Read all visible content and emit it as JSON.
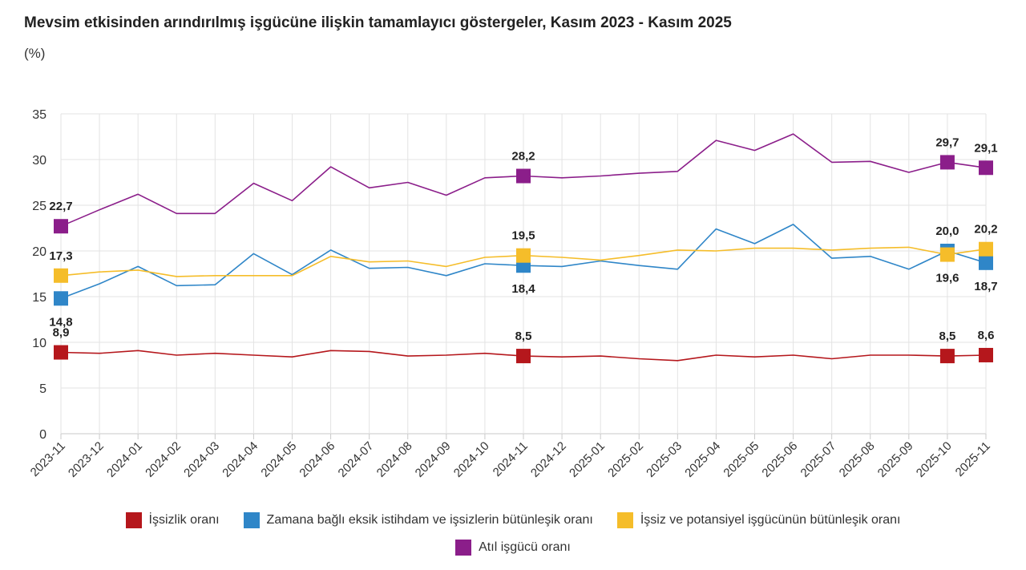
{
  "chart_data": {
    "type": "line",
    "title": "Mevsim etkisinden arındırılmış işgücüne ilişkin tamamlayıcı göstergeler, Kasım 2023 - Kasım 2025",
    "unit_label": "(%)",
    "ylim": [
      0,
      35
    ],
    "yticks": [
      0,
      5,
      10,
      15,
      20,
      25,
      30,
      35
    ],
    "grid": true,
    "legend_position": "bottom",
    "categories": [
      "2023-11",
      "2023-12",
      "2024-01",
      "2024-02",
      "2024-03",
      "2024-04",
      "2024-05",
      "2024-06",
      "2024-07",
      "2024-08",
      "2024-09",
      "2024-10",
      "2024-11",
      "2024-12",
      "2025-01",
      "2025-02",
      "2025-03",
      "2025-04",
      "2025-05",
      "2025-06",
      "2025-07",
      "2025-08",
      "2025-09",
      "2025-10",
      "2025-11"
    ],
    "series": [
      {
        "name": "İşsizlik oranı",
        "color": "#b5171c",
        "values": [
          8.9,
          8.8,
          9.1,
          8.6,
          8.8,
          8.6,
          8.4,
          9.1,
          9.0,
          8.5,
          8.6,
          8.8,
          8.5,
          8.4,
          8.5,
          8.2,
          8.0,
          8.6,
          8.4,
          8.6,
          8.2,
          8.6,
          8.6,
          8.5,
          8.6
        ],
        "labeled": [
          {
            "index": 0,
            "text": "8,9",
            "pos": "above"
          },
          {
            "index": 12,
            "text": "8,5",
            "pos": "above"
          },
          {
            "index": 23,
            "text": "8,5",
            "pos": "above"
          },
          {
            "index": 24,
            "text": "8,6",
            "pos": "above"
          }
        ]
      },
      {
        "name": "Zamana bağlı eksik istihdam ve işsizlerin bütünleşik oranı",
        "color": "#2f86c8",
        "values": [
          14.8,
          16.4,
          18.3,
          16.2,
          16.3,
          19.7,
          17.4,
          20.1,
          18.1,
          18.2,
          17.3,
          18.6,
          18.4,
          18.3,
          18.9,
          18.4,
          18.0,
          22.4,
          20.8,
          22.9,
          19.2,
          19.4,
          18.0,
          20.0,
          18.7
        ],
        "labeled": [
          {
            "index": 0,
            "text": "14,8",
            "pos": "below"
          },
          {
            "index": 12,
            "text": "18,4",
            "pos": "below"
          },
          {
            "index": 23,
            "text": "20,0",
            "pos": "above"
          },
          {
            "index": 24,
            "text": "18,7",
            "pos": "below"
          }
        ]
      },
      {
        "name": "İşsiz ve potansiyel işgücünün bütünleşik oranı",
        "color": "#f5bd2a",
        "values": [
          17.3,
          17.7,
          17.9,
          17.2,
          17.3,
          17.3,
          17.3,
          19.4,
          18.8,
          18.9,
          18.3,
          19.3,
          19.5,
          19.3,
          19.0,
          19.5,
          20.1,
          20.0,
          20.3,
          20.3,
          20.1,
          20.3,
          20.4,
          19.6,
          20.2
        ],
        "labeled": [
          {
            "index": 0,
            "text": "17,3",
            "pos": "above"
          },
          {
            "index": 12,
            "text": "19,5",
            "pos": "above"
          },
          {
            "index": 23,
            "text": "19,6",
            "pos": "below"
          },
          {
            "index": 24,
            "text": "20,2",
            "pos": "above"
          }
        ]
      },
      {
        "name": "Atıl işgücü oranı",
        "color": "#8b1e8a",
        "values": [
          22.7,
          24.5,
          26.2,
          24.1,
          24.1,
          27.4,
          25.5,
          29.2,
          26.9,
          27.5,
          26.1,
          28.0,
          28.2,
          28.0,
          28.2,
          28.5,
          28.7,
          32.1,
          31.0,
          32.8,
          29.7,
          29.8,
          28.6,
          29.7,
          29.1
        ],
        "labeled": [
          {
            "index": 0,
            "text": "22,7",
            "pos": "above"
          },
          {
            "index": 12,
            "text": "28,2",
            "pos": "above"
          },
          {
            "index": 23,
            "text": "29,7",
            "pos": "above"
          },
          {
            "index": 24,
            "text": "29,1",
            "pos": "above"
          }
        ]
      }
    ]
  },
  "legend": {
    "row1": [
      {
        "label": "İşsizlik oranı",
        "color": "#b5171c"
      },
      {
        "label": "Zamana bağlı eksik istihdam ve işsizlerin bütünleşik oranı",
        "color": "#2f86c8"
      },
      {
        "label": "İşsiz ve potansiyel işgücünün bütünleşik oranı",
        "color": "#f5bd2a"
      }
    ],
    "row2": [
      {
        "label": "Atıl işgücü oranı",
        "color": "#8b1e8a"
      }
    ]
  }
}
